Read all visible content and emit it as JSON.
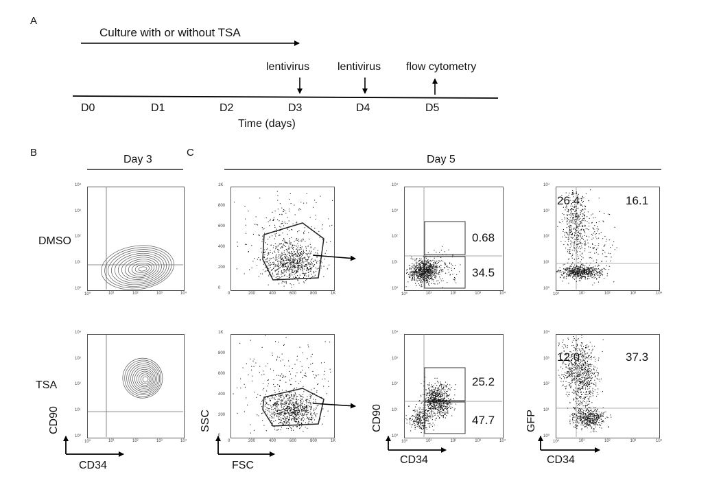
{
  "panel_labels": {
    "a": "A",
    "b": "B",
    "c": "C"
  },
  "timeline": {
    "culture_label": "Culture with or without TSA",
    "events": [
      {
        "label": "lentivirus",
        "day": "D3",
        "direction": "down"
      },
      {
        "label": "lentivirus",
        "day": "D4",
        "direction": "down"
      },
      {
        "label": "flow cytometry",
        "day": "D5",
        "direction": "up"
      }
    ],
    "days": [
      "D0",
      "D1",
      "D2",
      "D3",
      "D4",
      "D5"
    ],
    "axis_label": "Time (days)"
  },
  "headers": {
    "day3": "Day 3",
    "day5": "Day 5"
  },
  "rows": [
    {
      "condition": "DMSO",
      "cd90_upper": "0.68",
      "cd90_lower": "34.5",
      "gfp_left": "26.4",
      "gfp_right": "16.1"
    },
    {
      "condition": "TSA",
      "cd90_upper": "25.2",
      "cd90_lower": "47.7",
      "gfp_left": "12.0",
      "gfp_right": "37.3"
    }
  ],
  "axes": {
    "cd34": "CD34",
    "cd90": "CD90",
    "ssc": "SSC",
    "fsc": "FSC",
    "gfp": "GFP",
    "log_ticks": [
      "10⁰",
      "10¹",
      "10²",
      "10³",
      "10⁴"
    ],
    "lin_x_ticks": [
      "0",
      "200",
      "400",
      "600",
      "800",
      "1K"
    ],
    "lin_y_ticks": [
      "0",
      "200",
      "400",
      "600",
      "800",
      "1K"
    ]
  }
}
